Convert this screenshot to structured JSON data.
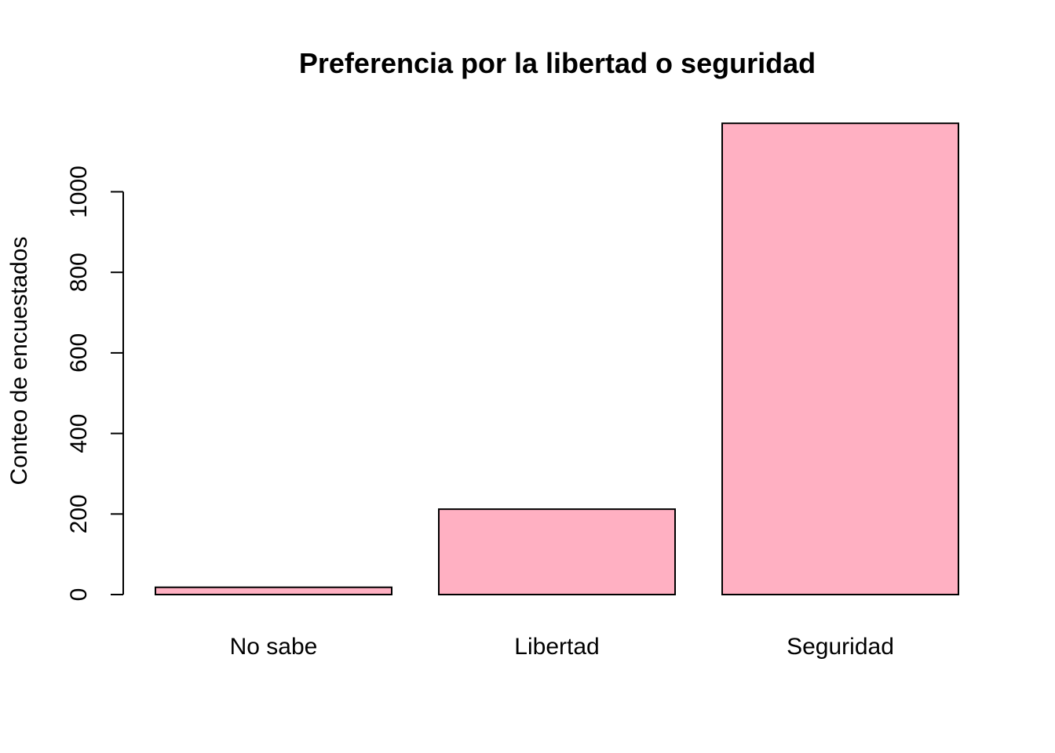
{
  "chart_data": {
    "type": "bar",
    "title": "Preferencia por la libertad o seguridad",
    "xlabel": "",
    "ylabel": "Conteo de encuestados",
    "categories": [
      "No sabe",
      "Libertad",
      "Seguridad"
    ],
    "values": [
      18,
      212,
      1170
    ],
    "yticks": [
      0,
      200,
      400,
      600,
      800,
      1000
    ],
    "ylim": [
      0,
      1170
    ],
    "bar_color": "#FFB0C2",
    "grid": false,
    "legend": "none"
  }
}
